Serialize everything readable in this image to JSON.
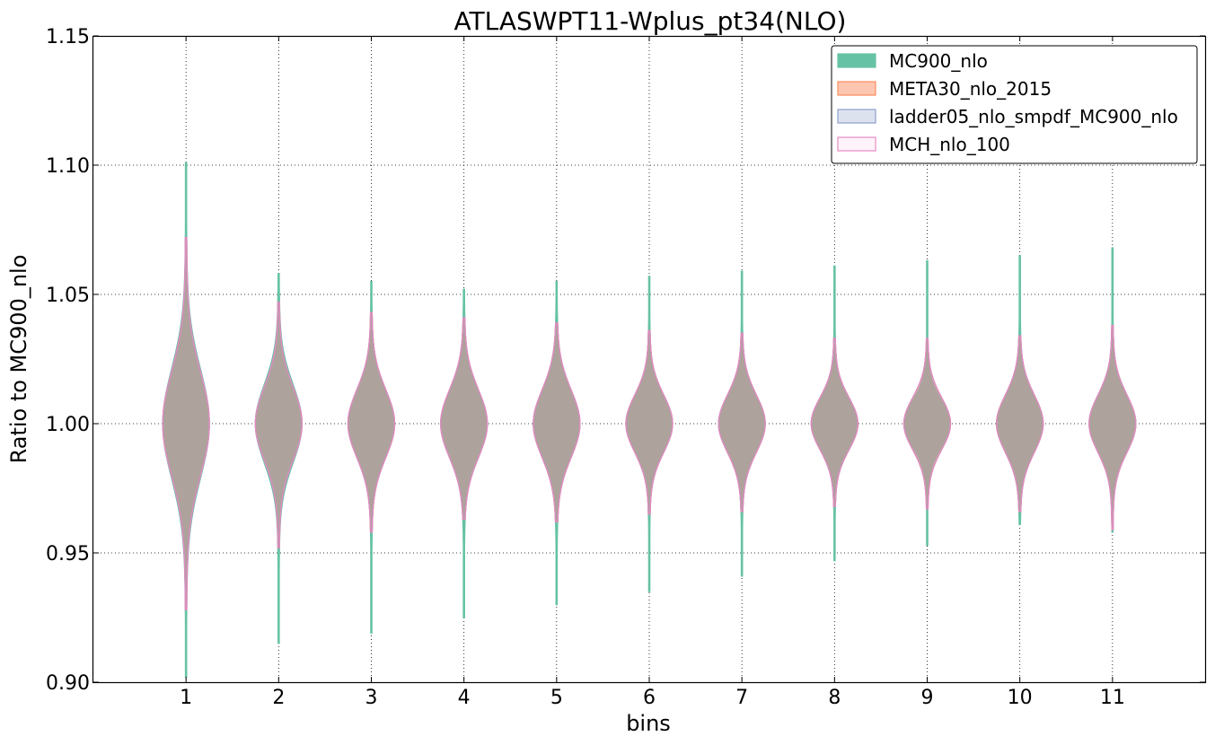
{
  "chart_data": {
    "type": "violin",
    "title": "ATLASWPT11-Wplus_pt34(NLO)",
    "xlabel": "bins",
    "ylabel": "Ratio to MC900_nlo",
    "ylim": [
      0.9,
      1.15
    ],
    "xlim": [
      0,
      12
    ],
    "grid": true,
    "grid_style": "dotted",
    "legend_position": "top-right",
    "categories": [
      "1",
      "2",
      "3",
      "4",
      "5",
      "6",
      "7",
      "8",
      "9",
      "10",
      "11"
    ],
    "yticks": [
      "0.90",
      "0.95",
      "1.00",
      "1.05",
      "1.10",
      "1.15"
    ],
    "series": [
      {
        "name": "MC900_nlo",
        "fill": "#66c2a5",
        "stroke": "#66c2a5",
        "fill_opacity": 1.0,
        "ranges": [
          [
            0.902,
            1.101
          ],
          [
            0.915,
            1.058
          ],
          [
            0.919,
            1.055
          ],
          [
            0.925,
            1.052
          ],
          [
            0.93,
            1.055
          ],
          [
            0.935,
            1.057
          ],
          [
            0.941,
            1.059
          ],
          [
            0.947,
            1.061
          ],
          [
            0.953,
            1.063
          ],
          [
            0.961,
            1.065
          ],
          [
            0.958,
            1.068
          ]
        ],
        "spread": [
          0.021,
          0.015,
          0.013,
          0.013,
          0.013,
          0.011,
          0.011,
          0.01,
          0.009,
          0.011,
          0.011
        ]
      },
      {
        "name": "META30_nlo_2015",
        "fill": "#fc8d62",
        "stroke": "#fc8d62",
        "fill_opacity": 0.5,
        "ranges": [
          [
            0.928,
            1.072
          ],
          [
            0.952,
            1.047
          ],
          [
            0.958,
            1.043
          ],
          [
            0.963,
            1.041
          ],
          [
            0.962,
            1.039
          ],
          [
            0.965,
            1.036
          ],
          [
            0.966,
            1.035
          ],
          [
            0.968,
            1.033
          ],
          [
            0.967,
            1.033
          ],
          [
            0.966,
            1.034
          ],
          [
            0.959,
            1.038
          ]
        ],
        "spread": [
          0.02,
          0.014,
          0.013,
          0.013,
          0.013,
          0.011,
          0.011,
          0.01,
          0.01,
          0.011,
          0.011
        ]
      },
      {
        "name": "ladder05_nlo_smpdf_MC900_nlo",
        "fill": "#8da0cb",
        "stroke": "#8da0cb",
        "fill_opacity": 0.3,
        "ranges": [
          [
            0.928,
            1.072
          ],
          [
            0.952,
            1.047
          ],
          [
            0.958,
            1.043
          ],
          [
            0.963,
            1.041
          ],
          [
            0.962,
            1.039
          ],
          [
            0.965,
            1.036
          ],
          [
            0.966,
            1.035
          ],
          [
            0.968,
            1.033
          ],
          [
            0.967,
            1.033
          ],
          [
            0.966,
            1.034
          ],
          [
            0.959,
            1.038
          ]
        ],
        "spread": [
          0.02,
          0.014,
          0.013,
          0.013,
          0.013,
          0.011,
          0.011,
          0.01,
          0.01,
          0.011,
          0.011
        ]
      },
      {
        "name": "MCH_nlo_100",
        "fill": "#e78ac3",
        "stroke": "#e78ac3",
        "fill_opacity": 0.1,
        "ranges": [
          [
            0.928,
            1.072
          ],
          [
            0.952,
            1.047
          ],
          [
            0.958,
            1.043
          ],
          [
            0.963,
            1.041
          ],
          [
            0.962,
            1.039
          ],
          [
            0.965,
            1.036
          ],
          [
            0.966,
            1.035
          ],
          [
            0.968,
            1.033
          ],
          [
            0.967,
            1.033
          ],
          [
            0.966,
            1.034
          ],
          [
            0.959,
            1.038
          ]
        ],
        "spread": [
          0.02,
          0.014,
          0.013,
          0.013,
          0.013,
          0.011,
          0.011,
          0.01,
          0.01,
          0.011,
          0.011
        ]
      }
    ]
  }
}
